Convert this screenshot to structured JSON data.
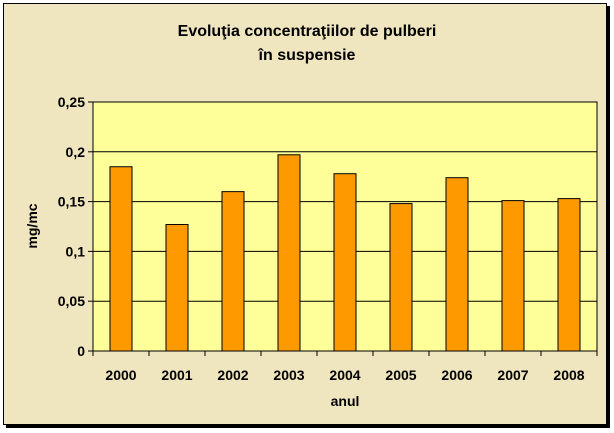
{
  "chart_data": {
    "type": "bar",
    "title_line1": "Evoluţia concentraţiilor de pulberi",
    "title_line2": "în suspensie",
    "xlabel": "anul",
    "ylabel": "mg/mc",
    "categories": [
      "2000",
      "2001",
      "2002",
      "2003",
      "2004",
      "2005",
      "2006",
      "2007",
      "2008"
    ],
    "values": [
      0.185,
      0.127,
      0.16,
      0.197,
      0.178,
      0.148,
      0.174,
      0.151,
      0.153
    ],
    "yticks": [
      "0",
      "0,05",
      "0,1",
      "0,15",
      "0,2",
      "0,25"
    ],
    "ylim": [
      0,
      0.25
    ],
    "grid": true,
    "legend": "none",
    "colors": {
      "background": "#efe5bf",
      "plot_area": "#ffff99",
      "bar_fill": "#ff9900",
      "bar_stroke": "#000000"
    }
  }
}
